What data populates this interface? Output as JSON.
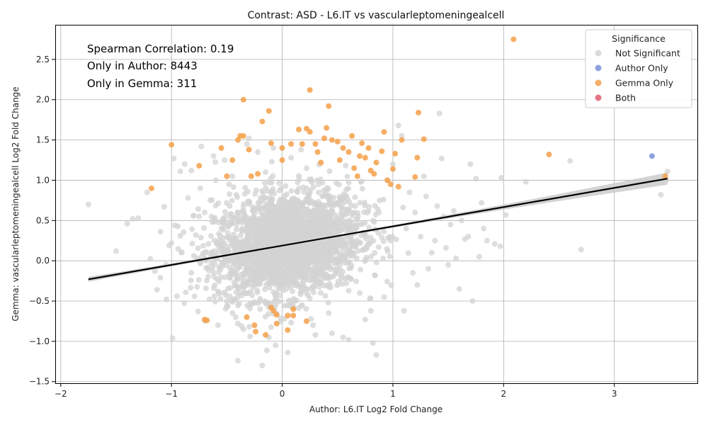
{
  "chart_data": {
    "type": "scatter",
    "title": "Contrast: ASD - L6.IT vs vascularleptomeningealcell",
    "xlabel": "Author: L6.IT Log2 Fold Change",
    "ylabel": "Gemma: vascularleptomeningealcell Log2 Fold Change",
    "xlim": [
      -2.05,
      3.75
    ],
    "ylim": [
      -1.52,
      2.93
    ],
    "xticks": [
      -2,
      -1,
      0,
      1,
      2,
      3
    ],
    "yticks": [
      -1.5,
      -1.0,
      -0.5,
      0.0,
      0.5,
      1.0,
      1.5,
      2.0,
      2.5
    ],
    "xtick_labels": [
      "−2",
      "−1",
      "0",
      "1",
      "2",
      "3"
    ],
    "ytick_labels": [
      "−1.5",
      "−1.0",
      "−0.5",
      "0.0",
      "0.5",
      "1.0",
      "1.5",
      "2.0",
      "2.5"
    ],
    "grid": true,
    "legend_position": "top-right",
    "legend_title": "Significance",
    "annotations": [
      "Spearman Correlation: 0.19",
      "Only in Author: 8443",
      "Only in Gemma: 311"
    ],
    "regression": {
      "x": [
        -1.75,
        3.48
      ],
      "y": [
        -0.23,
        1.02
      ],
      "color": "#000000"
    },
    "series": [
      {
        "name": "Not Significant",
        "color": "#d3d3d3",
        "points": [
          [
            -1.75,
            0.7
          ],
          [
            -1.5,
            0.12
          ],
          [
            -1.4,
            0.46
          ],
          [
            -1.35,
            0.52
          ],
          [
            -1.3,
            0.53
          ],
          [
            -1.22,
            0.85
          ],
          [
            -1.15,
            -0.13
          ],
          [
            -1.13,
            -0.36
          ],
          [
            -1.1,
            -0.21
          ],
          [
            -1.05,
            -0.05
          ],
          [
            -1.02,
            0.19
          ],
          [
            -1.0,
            0.22
          ],
          [
            -0.99,
            -0.96
          ],
          [
            -0.98,
            1.27
          ],
          [
            -0.97,
            0.44
          ],
          [
            -0.95,
            -0.44
          ],
          [
            -0.92,
            1.11
          ],
          [
            -0.88,
            1.2
          ],
          [
            -0.85,
            0.78
          ],
          [
            -0.82,
            1.12
          ],
          [
            -0.8,
            0.56
          ],
          [
            -0.78,
            0.32
          ],
          [
            -0.76,
            -0.63
          ],
          [
            -0.74,
            0.9
          ],
          [
            -0.73,
            1.42
          ],
          [
            -0.7,
            0.6
          ],
          [
            -0.68,
            0.1
          ],
          [
            -0.65,
            0.75
          ],
          [
            -0.62,
            1.3
          ],
          [
            -0.6,
            1.0
          ],
          [
            -0.58,
            -0.8
          ],
          [
            -0.55,
            0.4
          ],
          [
            -0.52,
            1.25
          ],
          [
            -0.5,
            -0.5
          ],
          [
            -0.48,
            0.95
          ],
          [
            -0.45,
            1.05
          ],
          [
            -0.42,
            -0.7
          ],
          [
            -0.4,
            -1.24
          ],
          [
            -0.38,
            0.2
          ],
          [
            -0.35,
            -0.85
          ],
          [
            -0.32,
            1.45
          ],
          [
            -0.3,
            1.52
          ],
          [
            -0.28,
            -0.3
          ],
          [
            -0.25,
            0.65
          ],
          [
            -0.22,
            1.35
          ],
          [
            -0.2,
            -0.6
          ],
          [
            -0.18,
            -1.3
          ],
          [
            -0.15,
            1.1
          ],
          [
            -0.12,
            -0.95
          ],
          [
            -0.1,
            0.85
          ],
          [
            -0.08,
            1.4
          ],
          [
            -0.06,
            -1.05
          ],
          [
            -0.05,
            -0.4
          ],
          [
            0.02,
            -0.72
          ],
          [
            0.05,
            -1.14
          ],
          [
            0.08,
            1.28
          ],
          [
            0.12,
            -0.2
          ],
          [
            0.15,
            0.9
          ],
          [
            0.18,
            -0.55
          ],
          [
            0.22,
            1.15
          ],
          [
            0.28,
            -0.8
          ],
          [
            0.3,
            -0.92
          ],
          [
            0.35,
            0.7
          ],
          [
            0.42,
            -0.65
          ],
          [
            0.45,
            -0.9
          ],
          [
            0.5,
            0.3
          ],
          [
            0.55,
            -0.95
          ],
          [
            0.6,
            -0.98
          ],
          [
            0.65,
            0.6
          ],
          [
            0.7,
            -0.4
          ],
          [
            0.75,
            -0.73
          ],
          [
            0.8,
            -0.62
          ],
          [
            0.82,
            -1.02
          ],
          [
            0.85,
            -1.17
          ],
          [
            0.88,
            0.75
          ],
          [
            0.92,
            -0.45
          ],
          [
            0.95,
            1.0
          ],
          [
            1.0,
            1.2
          ],
          [
            1.05,
            1.68
          ],
          [
            1.08,
            1.55
          ],
          [
            1.1,
            -0.62
          ],
          [
            1.12,
            0.4
          ],
          [
            1.15,
            0.85
          ],
          [
            1.18,
            -0.15
          ],
          [
            1.2,
            0.6
          ],
          [
            1.22,
            -0.3
          ],
          [
            1.25,
            0.3
          ],
          [
            1.28,
            1.05
          ],
          [
            1.3,
            0.8
          ],
          [
            1.32,
            -0.1
          ],
          [
            1.35,
            0.1
          ],
          [
            1.38,
            0.25
          ],
          [
            1.4,
            0.68
          ],
          [
            1.42,
            1.83
          ],
          [
            1.44,
            1.27
          ],
          [
            1.46,
            0.55
          ],
          [
            1.48,
            0.16
          ],
          [
            1.5,
            -0.05
          ],
          [
            1.52,
            0.45
          ],
          [
            1.55,
            0.62
          ],
          [
            1.57,
            0.03
          ],
          [
            1.6,
            -0.35
          ],
          [
            1.62,
            0.5
          ],
          [
            1.65,
            0.27
          ],
          [
            1.68,
            0.3
          ],
          [
            1.7,
            1.2
          ],
          [
            1.72,
            -0.5
          ],
          [
            1.75,
            1.02
          ],
          [
            1.78,
            0.05
          ],
          [
            1.8,
            0.72
          ],
          [
            1.82,
            0.4
          ],
          [
            1.85,
            0.25
          ],
          [
            1.92,
            0.21
          ],
          [
            1.97,
            0.18
          ],
          [
            1.98,
            1.03
          ],
          [
            2.02,
            0.57
          ],
          [
            2.2,
            0.98
          ],
          [
            2.6,
            1.24
          ],
          [
            2.7,
            0.14
          ],
          [
            3.42,
            0.82
          ],
          [
            3.48,
            1.11
          ],
          [
            3.47,
            1.0
          ]
        ]
      },
      {
        "name": "Author Only",
        "color": "#7b93d9",
        "points": [
          [
            3.34,
            1.3
          ]
        ]
      },
      {
        "name": "Gemma Only",
        "color": "#f5a04a",
        "points": [
          [
            -1.18,
            0.9
          ],
          [
            -1.0,
            1.44
          ],
          [
            -0.75,
            1.18
          ],
          [
            -0.7,
            -0.73
          ],
          [
            -0.68,
            -0.74
          ],
          [
            -0.55,
            1.4
          ],
          [
            -0.5,
            1.05
          ],
          [
            -0.45,
            1.25
          ],
          [
            -0.4,
            1.5
          ],
          [
            -0.38,
            1.55
          ],
          [
            -0.35,
            1.55
          ],
          [
            -0.35,
            2.0
          ],
          [
            -0.32,
            -0.7
          ],
          [
            -0.3,
            1.38
          ],
          [
            -0.28,
            1.05
          ],
          [
            -0.25,
            -0.8
          ],
          [
            -0.24,
            -0.88
          ],
          [
            -0.22,
            1.08
          ],
          [
            -0.18,
            1.73
          ],
          [
            -0.15,
            -0.92
          ],
          [
            -0.12,
            1.86
          ],
          [
            -0.1,
            1.46
          ],
          [
            -0.1,
            -0.58
          ],
          [
            -0.08,
            -0.62
          ],
          [
            -0.05,
            -0.67
          ],
          [
            -0.05,
            -0.78
          ],
          [
            0.0,
            1.25
          ],
          [
            0.0,
            1.4
          ],
          [
            0.05,
            -0.68
          ],
          [
            0.05,
            -0.86
          ],
          [
            0.08,
            1.45
          ],
          [
            0.1,
            -0.6
          ],
          [
            0.1,
            -0.68
          ],
          [
            0.15,
            1.63
          ],
          [
            0.18,
            1.45
          ],
          [
            0.22,
            1.64
          ],
          [
            0.25,
            1.6
          ],
          [
            0.25,
            2.12
          ],
          [
            0.22,
            -0.75
          ],
          [
            0.3,
            1.45
          ],
          [
            0.32,
            1.35
          ],
          [
            0.35,
            1.22
          ],
          [
            0.38,
            1.52
          ],
          [
            0.4,
            1.65
          ],
          [
            0.42,
            1.92
          ],
          [
            0.45,
            1.5
          ],
          [
            0.5,
            1.48
          ],
          [
            0.52,
            1.25
          ],
          [
            0.55,
            1.4
          ],
          [
            0.6,
            1.35
          ],
          [
            0.63,
            1.55
          ],
          [
            0.65,
            1.15
          ],
          [
            0.68,
            1.05
          ],
          [
            0.7,
            1.3
          ],
          [
            0.72,
            1.46
          ],
          [
            0.75,
            1.28
          ],
          [
            0.78,
            1.4
          ],
          [
            0.8,
            1.12
          ],
          [
            0.83,
            1.08
          ],
          [
            0.85,
            1.22
          ],
          [
            0.9,
            1.36
          ],
          [
            0.92,
            1.6
          ],
          [
            0.95,
            1.0
          ],
          [
            0.98,
            0.95
          ],
          [
            1.0,
            1.14
          ],
          [
            1.02,
            1.33
          ],
          [
            1.05,
            0.92
          ],
          [
            1.08,
            1.5
          ],
          [
            1.2,
            1.04
          ],
          [
            1.22,
            1.28
          ],
          [
            1.23,
            1.84
          ],
          [
            1.28,
            1.51
          ],
          [
            2.09,
            2.75
          ],
          [
            2.41,
            1.32
          ],
          [
            3.46,
            1.05
          ]
        ]
      },
      {
        "name": "Both",
        "color": "#e05a70",
        "points": []
      }
    ]
  }
}
